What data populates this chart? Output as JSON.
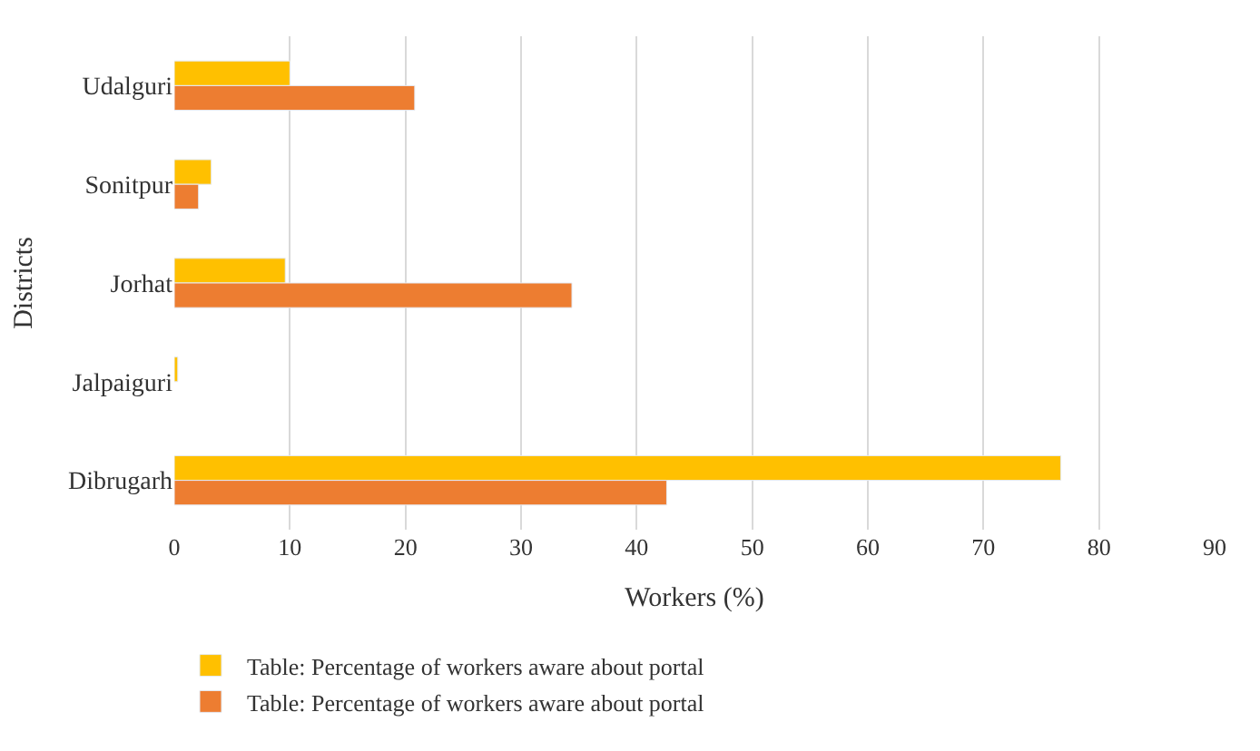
{
  "chart_data": {
    "type": "bar",
    "orientation": "horizontal",
    "xlabel": "Workers (%)",
    "ylabel": "Districts",
    "categories": [
      "Udalguri",
      "Sonitpur",
      "Jorhat",
      "Jalpaiguri",
      "Dibrugarh"
    ],
    "series": [
      {
        "name": "Table: Percentage of workers aware about portal",
        "color": "#ffc000",
        "values": [
          10,
          3.2,
          9.6,
          0.3,
          76.7
        ]
      },
      {
        "name": "Table: Percentage of workers aware about portal",
        "color": "#ed7d31",
        "values": [
          20.8,
          2.1,
          34.4,
          null,
          42.6
        ]
      }
    ],
    "xlim": [
      0,
      90
    ],
    "xticks": [
      0,
      10,
      20,
      30,
      40,
      50,
      60,
      70,
      80,
      90
    ],
    "grid": "x",
    "legend": "bottom"
  }
}
